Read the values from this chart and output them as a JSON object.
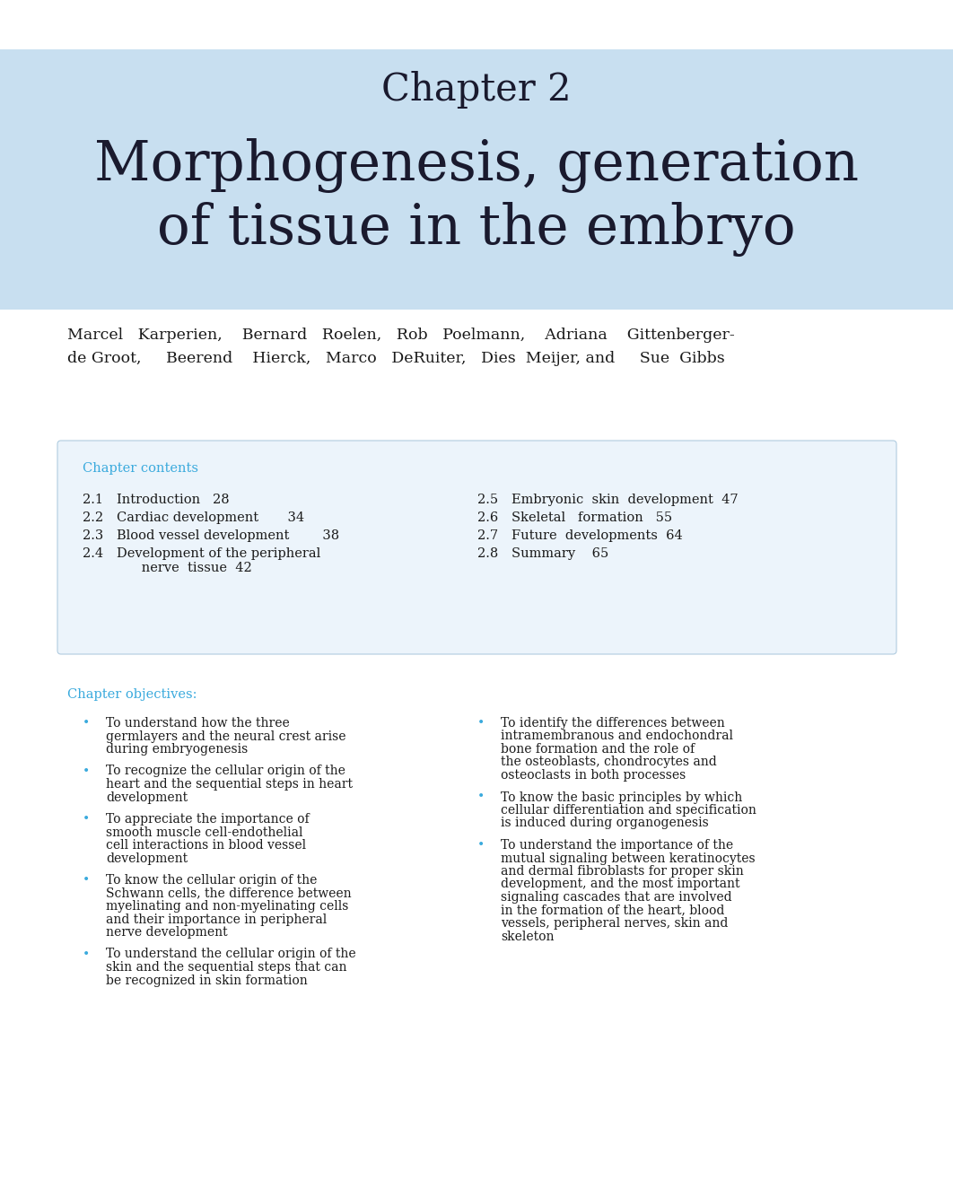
{
  "bg_color": "#ffffff",
  "header_bg_color": "#c8dff0",
  "chapter_label": "Chapter 2",
  "chapter_label_fontsize": 30,
  "title_line1": "Morphogenesis, generation",
  "title_line2": "of tissue in the embryo",
  "title_fontsize": 44,
  "title_color": "#1a1a2e",
  "authors_line1": "Marcel   Karperien,    Bernard   Roelen,   Rob   Poelmann,    Adriana    Gittenberger-",
  "authors_line2": "de Groot,     Beerend    Hierck,   Marco   DeRuiter,   Dies  Meijer, and     Sue  Gibbs",
  "authors_fontsize": 12.5,
  "authors_color": "#1a1a1a",
  "box_bg_color": "#ecf4fb",
  "box_edge_color": "#b0cce0",
  "contents_title": "Chapter contents",
  "contents_title_color": "#3aaadd",
  "contents_title_fontsize": 10.5,
  "contents_left": [
    [
      "2.1",
      "Introduction   28"
    ],
    [
      "2.2",
      "Cardiac development       34"
    ],
    [
      "2.3",
      "Blood vessel development        38"
    ],
    [
      "2.4",
      "Development of the peripheral\n      nerve  tissue  42"
    ]
  ],
  "contents_right": [
    [
      "2.5",
      "Embryonic  skin  development  47"
    ],
    [
      "2.6",
      "Skeletal   formation   55"
    ],
    [
      "2.7",
      "Future  developments  64"
    ],
    [
      "2.8",
      "Summary    65"
    ]
  ],
  "contents_fontsize": 10.5,
  "contents_color": "#1a1a1a",
  "objectives_title": "Chapter objectives:",
  "objectives_title_color": "#3aaadd",
  "objectives_title_fontsize": 10.5,
  "objectives_left": [
    "To understand how the three\ngermlayers and the neural crest arise\nduring embryogenesis",
    "To recognize the cellular origin of the\nheart and the sequential steps in heart\ndevelopment",
    "To appreciate the importance of\nsmooth muscle cell-endothelial\ncell interactions in blood vessel\ndevelopment",
    "To know the cellular origin of the\nSchwann cells, the difference between\nmyelinating and non-myelinating cells\nand their importance in peripheral\nnerve development",
    "To understand the cellular origin of the\nskin and the sequential steps that can\nbe recognized in skin formation"
  ],
  "objectives_right": [
    "To identify the differences between\nintramembranous and endochondral\nbone formation and the role of\nthe osteoblasts, chondrocytes and\nosteoclasts in both processes",
    "To know the basic principles by which\ncellular differentiation and specification\nis induced during organogenesis",
    "To understand the importance of the\nmutual signaling between keratinocytes\nand dermal fibroblasts for proper skin\ndevelopment, and the most important\nsignaling cascades that are involved\nin the formation of the heart, blood\nvessels, peripheral nerves, skin and\nskeleton"
  ],
  "objectives_fontsize": 10.0,
  "objectives_color": "#1a1a1a",
  "bullet_color": "#3aaadd"
}
